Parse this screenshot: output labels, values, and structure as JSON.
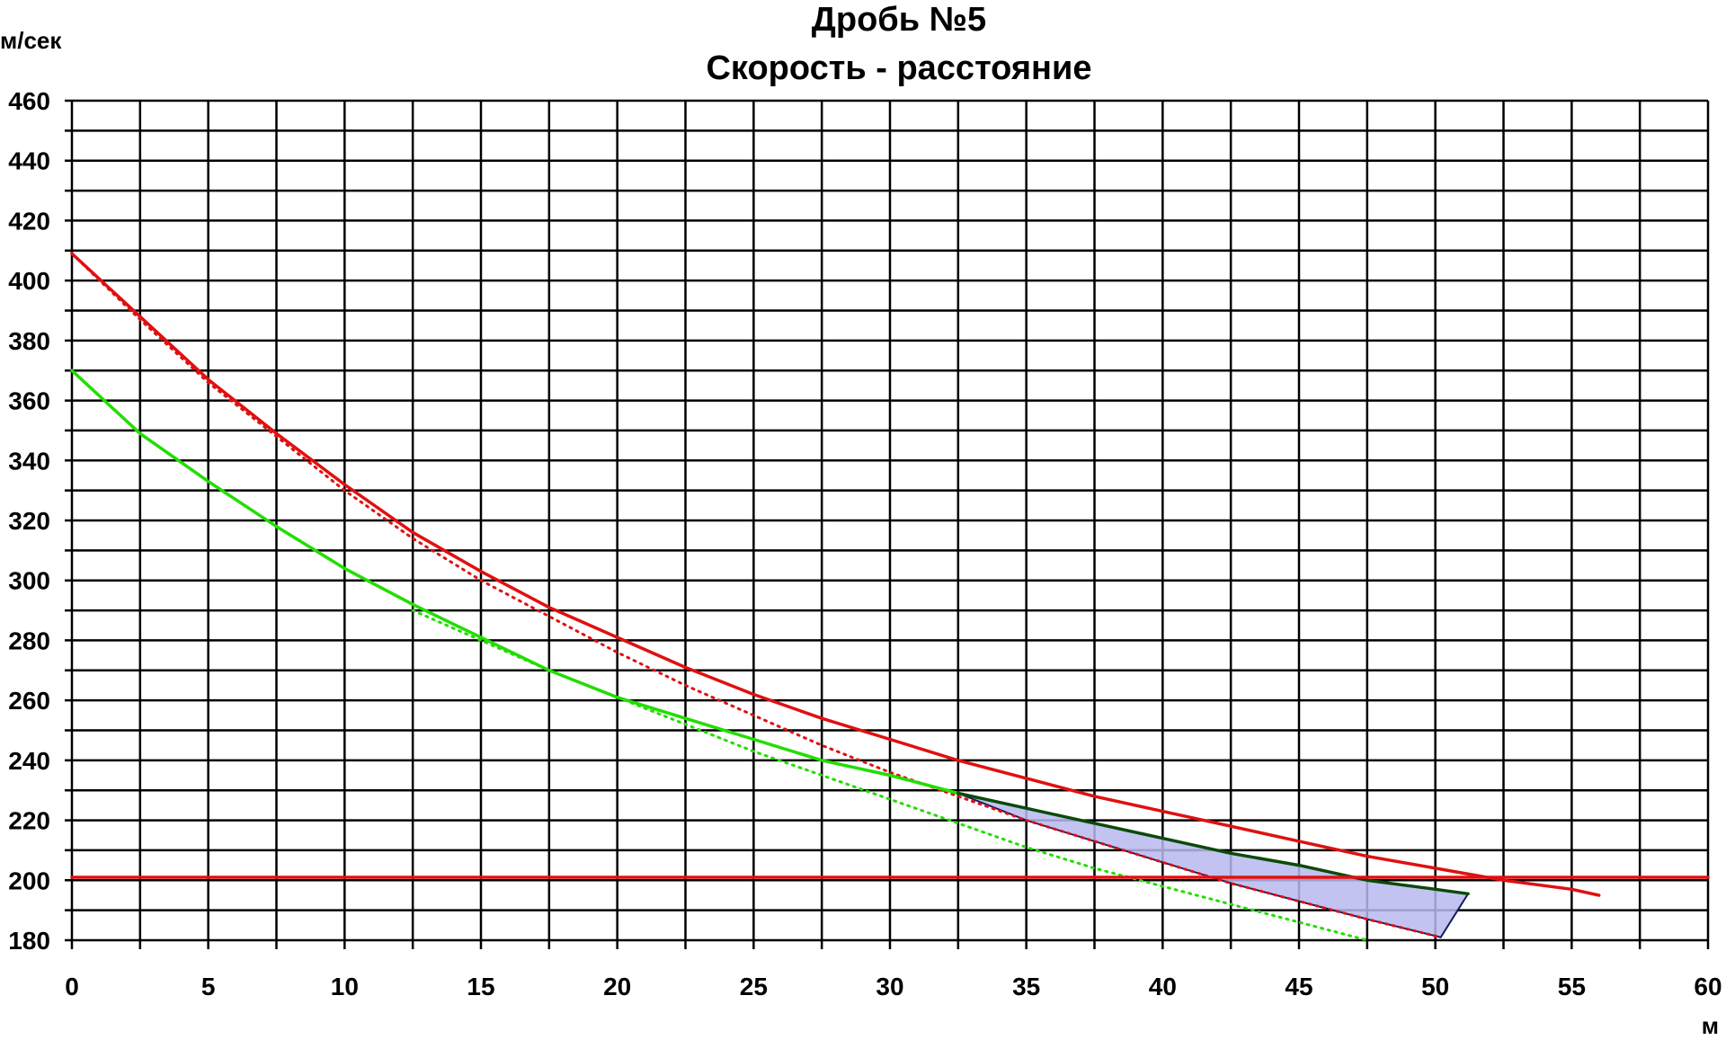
{
  "chart_data": {
    "type": "line",
    "title_line1": "Дробь №5",
    "title_line2": "Скорость - расстояние",
    "ylabel": "м/сек",
    "xlabel": "м",
    "xlim": [
      0,
      60
    ],
    "ylim": [
      180,
      460
    ],
    "x_ticks": [
      "0",
      "5",
      "10",
      "15",
      "20",
      "25",
      "30",
      "35",
      "40",
      "45",
      "50",
      "55",
      "60"
    ],
    "y_ticks": [
      "180",
      "200",
      "220",
      "240",
      "260",
      "280",
      "300",
      "320",
      "340",
      "360",
      "380",
      "400",
      "420",
      "440",
      "460"
    ],
    "grid": true,
    "colors": {
      "red": "#e01010",
      "green": "#22dd00",
      "dark_green": "#0a4a0a",
      "fill": "#b8b8ee",
      "fill_stroke": "#1a1a60",
      "grid": "#000000"
    },
    "series": [
      {
        "color": "red",
        "style": "solid",
        "x": [
          0,
          2.5,
          5,
          7.5,
          10,
          12.5,
          15,
          17.5,
          20,
          22.5,
          25,
          27.5,
          30,
          32.5,
          35,
          37.5,
          40,
          42.5,
          45,
          47.5,
          50,
          52.5,
          55,
          56
        ],
        "y": [
          409,
          388,
          367,
          349,
          332,
          316,
          303,
          291,
          281,
          271,
          262,
          254,
          247,
          240,
          234,
          228,
          223,
          218,
          213,
          208,
          204,
          200,
          197,
          195
        ]
      },
      {
        "color": "red",
        "style": "dotted",
        "x": [
          0,
          2.5,
          5,
          7.5,
          10,
          12.5,
          15,
          17.5,
          20,
          22.5,
          25,
          27.5,
          30,
          32.5,
          35,
          37.5,
          40,
          42.5,
          45,
          47.5,
          50.2
        ],
        "y": [
          409,
          387,
          366,
          348,
          330,
          314,
          300,
          288,
          276,
          265,
          255,
          245,
          236,
          228,
          220,
          213,
          206,
          199,
          193,
          187,
          181
        ]
      },
      {
        "color": "green",
        "style": "solid",
        "x": [
          0,
          2.5,
          5,
          7.5,
          10,
          12.5,
          15,
          17.5,
          20,
          22.5,
          25,
          27.5,
          30,
          32.5
        ],
        "y": [
          370,
          349,
          333,
          318,
          304,
          292,
          281,
          270,
          261,
          254,
          247,
          240,
          235,
          229
        ]
      },
      {
        "color": "green",
        "style": "dotted",
        "x": [
          12.5,
          15,
          17.5,
          20,
          22.5,
          25,
          27.5,
          30,
          32.5,
          35,
          37.5,
          40,
          42.5,
          45,
          47.5
        ],
        "y": [
          290,
          280,
          270,
          261,
          252,
          243,
          235,
          227,
          219,
          211,
          204,
          198,
          192,
          186,
          180
        ]
      },
      {
        "color": "dark_green",
        "style": "solid",
        "x": [
          32.5,
          35,
          37.5,
          40,
          42.5,
          45,
          47.5,
          50,
          51.2
        ],
        "y": [
          229,
          224,
          219,
          214,
          209,
          205,
          200,
          197,
          195.5
        ]
      },
      {
        "color": "red",
        "style": "solid",
        "x": [
          0,
          60
        ],
        "y": [
          201,
          201
        ]
      }
    ],
    "fill_region": {
      "x": [
        32.5,
        35,
        37.5,
        40,
        42.5,
        45,
        47.5,
        50,
        51.2,
        50.2,
        47.5,
        45,
        42.5,
        40,
        37.5,
        35,
        32.5
      ],
      "y": [
        229,
        224,
        219,
        214,
        209,
        205,
        200,
        197,
        195.5,
        181,
        187,
        193,
        199,
        206,
        213,
        220,
        229
      ]
    }
  }
}
